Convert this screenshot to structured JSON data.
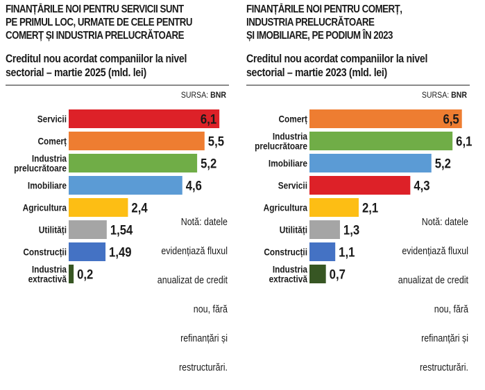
{
  "chart_data": [
    {
      "type": "bar",
      "orientation": "horizontal",
      "title": "FINANȚĂRILE NOI PENTRU SERVICII SUNT PE PRIMUL LOC, URMATE DE CELE PENTRU COMERȚ ȘI INDUSTRIA PRELUCRĂTOARE",
      "title_lines": [
        "FINANȚĂRILE NOI PENTRU SERVICII SUNT",
        "PE PRIMUL LOC, URMATE DE CELE PENTRU",
        "COMERȚ ȘI INDUSTRIA PRELUCRĂTOARE"
      ],
      "subtitle_lines": [
        "Creditul nou acordat companiilor la nivel",
        "sectorial – martie 2025 (mld. lei)"
      ],
      "source_label": "SURSA:",
      "source_value": "BNR",
      "xlabel": "",
      "ylabel": "",
      "xlim": [
        0,
        6.5
      ],
      "grid": false,
      "categories": [
        [
          "Servicii"
        ],
        [
          "Comerț"
        ],
        [
          "Industria",
          "prelucrătoare"
        ],
        [
          "Imobiliare"
        ],
        [
          "Agricultura"
        ],
        [
          "Utilități"
        ],
        [
          "Construcții"
        ],
        [
          "Industria",
          "extractivă"
        ]
      ],
      "values": [
        6.1,
        5.5,
        5.2,
        4.6,
        2.4,
        1.54,
        1.49,
        0.2
      ],
      "value_labels": [
        "6,1",
        "5,5",
        "5,2",
        "4,6",
        "2,4",
        "1,54",
        "1,49",
        "0,2"
      ],
      "colors": [
        "#dd2128",
        "#ee7d31",
        "#70ad47",
        "#5b9bd5",
        "#fdbe14",
        "#a5a5a5",
        "#4472c4",
        "#375623"
      ],
      "label_inside": [
        true,
        false,
        false,
        false,
        false,
        false,
        false,
        false
      ],
      "note_lines": [
        "Notă: datele",
        "evidențiază fluxul",
        "anualizat de credit",
        "nou, fără",
        "refinanțări și",
        "restructurări."
      ]
    },
    {
      "type": "bar",
      "orientation": "horizontal",
      "title": "FINANȚĂRILE NOI PENTRU COMERȚ, INDUSTRIA PRELUCRĂTOARE ȘI IMOBILIARE, PE PODIUM ÎN 2023",
      "title_lines": [
        "FINANȚĂRILE NOI PENTRU COMERȚ,",
        "INDUSTRIA PRELUCRĂTOARE",
        "ȘI IMOBILIARE, PE PODIUM ÎN 2023"
      ],
      "subtitle_lines": [
        "Creditul nou acordat companiilor la nivel",
        "sectorial – martie 2023 (mld. lei)"
      ],
      "source_label": "SURSA:",
      "source_value": "BNR",
      "xlabel": "",
      "ylabel": "",
      "xlim": [
        0,
        7.0
      ],
      "grid": false,
      "categories": [
        [
          "Comerț"
        ],
        [
          "Industria",
          "prelucrătoare"
        ],
        [
          "Imobiliare"
        ],
        [
          "Servicii"
        ],
        [
          "Agricultura"
        ],
        [
          "Utilități"
        ],
        [
          "Construcții"
        ],
        [
          "Industria",
          "extractivă"
        ]
      ],
      "values": [
        6.5,
        6.1,
        5.2,
        4.3,
        2.1,
        1.3,
        1.1,
        0.7
      ],
      "value_labels": [
        "6,5",
        "6,1",
        "5,2",
        "4,3",
        "2,1",
        "1,3",
        "1,1",
        "0,7"
      ],
      "colors": [
        "#ee7d31",
        "#70ad47",
        "#5b9bd5",
        "#dd2128",
        "#fdbe14",
        "#a5a5a5",
        "#4472c4",
        "#375623"
      ],
      "label_inside": [
        true,
        false,
        false,
        false,
        false,
        false,
        false,
        false
      ],
      "note_lines": [
        "Notă: datele",
        "evidențiază fluxul",
        "anualizat de credit",
        "nou, fără",
        "refinanțări și",
        "restructurări."
      ]
    }
  ]
}
